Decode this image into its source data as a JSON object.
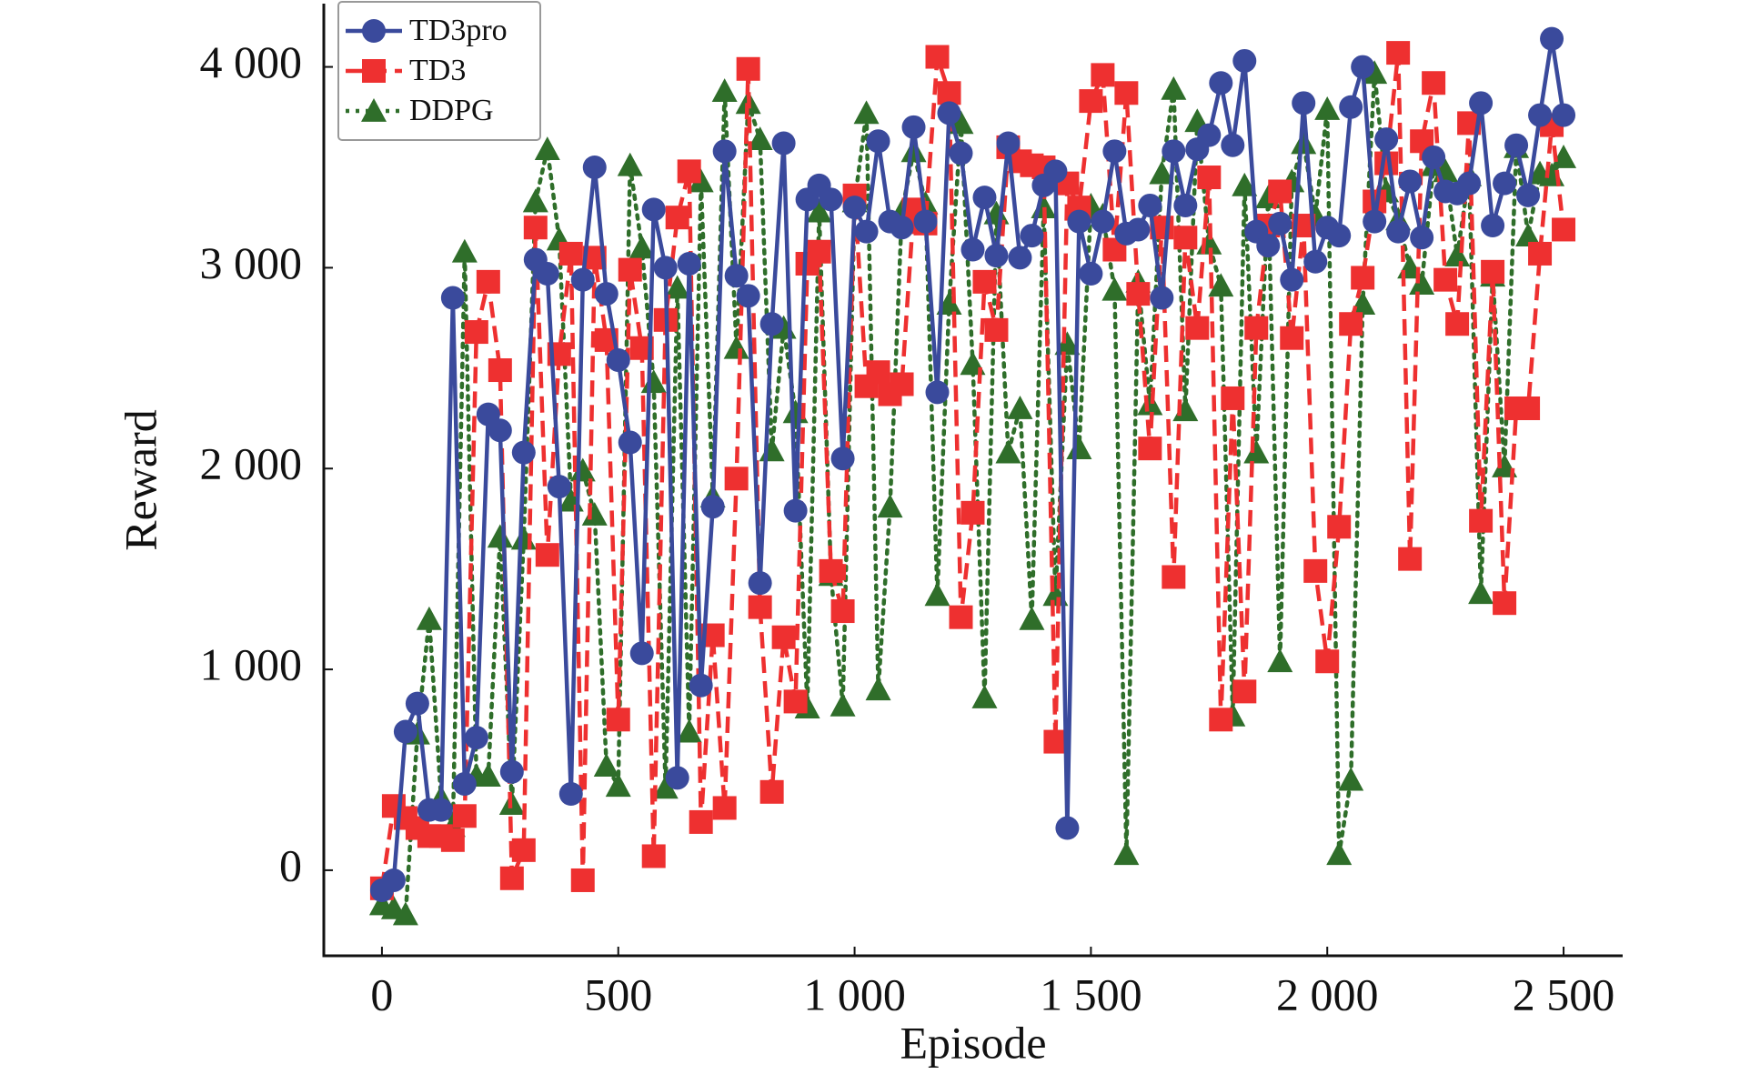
{
  "chart_data": {
    "type": "line",
    "x_label": "Episode",
    "y_label": "Reward",
    "x": [
      0,
      25,
      50,
      75,
      100,
      125,
      150,
      175,
      200,
      225,
      250,
      275,
      300,
      325,
      350,
      375,
      400,
      425,
      450,
      475,
      500,
      525,
      550,
      575,
      600,
      625,
      650,
      675,
      700,
      725,
      750,
      775,
      800,
      825,
      850,
      875,
      900,
      925,
      950,
      975,
      1000,
      1025,
      1050,
      1075,
      1100,
      1125,
      1150,
      1175,
      1200,
      1225,
      1250,
      1275,
      1300,
      1325,
      1350,
      1375,
      1400,
      1425,
      1450,
      1475,
      1500,
      1525,
      1550,
      1575,
      1600,
      1625,
      1650,
      1675,
      1700,
      1725,
      1750,
      1775,
      1800,
      1825,
      1850,
      1875,
      1900,
      1925,
      1950,
      1975,
      2000,
      2025,
      2050,
      2075,
      2100,
      2125,
      2150,
      2175,
      2200,
      2225,
      2250,
      2275,
      2300,
      2325,
      2350,
      2375,
      2400,
      2425,
      2450,
      2475,
      2500
    ],
    "series": [
      {
        "name": "TD3pro",
        "color": "#3a4a9c",
        "line": "solid",
        "marker": "circle",
        "values": [
          -100,
          -50,
          690,
          830,
          300,
          300,
          2850,
          430,
          660,
          2270,
          2190,
          490,
          2080,
          3040,
          2970,
          1910,
          380,
          2940,
          3500,
          2870,
          2540,
          2130,
          1080,
          3290,
          3000,
          460,
          3020,
          920,
          1810,
          3580,
          2960,
          2860,
          1430,
          2720,
          3620,
          1790,
          3340,
          3410,
          3340,
          2050,
          3300,
          3180,
          3630,
          3230,
          3200,
          3700,
          3230,
          2380,
          3770,
          3570,
          3090,
          3350,
          3060,
          3620,
          3050,
          3160,
          3410,
          3480,
          210,
          3230,
          2970,
          3230,
          3580,
          3170,
          3190,
          3310,
          2850,
          3580,
          3310,
          3590,
          3660,
          3920,
          3610,
          4030,
          3180,
          3110,
          3220,
          2940,
          3820,
          3030,
          3200,
          3160,
          3800,
          4000,
          3230,
          3640,
          3180,
          3430,
          3150,
          3550,
          3380,
          3370,
          3420,
          3820,
          3210,
          3420,
          3610,
          3360,
          3760,
          4140,
          3760
        ]
      },
      {
        "name": "TD3",
        "color": "#ee3030",
        "line": "dashed",
        "marker": "square",
        "values": [
          -90,
          320,
          260,
          210,
          170,
          170,
          150,
          270,
          2680,
          2930,
          2490,
          -40,
          100,
          3200,
          1570,
          2570,
          3070,
          -50,
          3050,
          2640,
          750,
          2990,
          2600,
          70,
          2740,
          3250,
          3480,
          240,
          1170,
          310,
          1950,
          3990,
          1310,
          390,
          1160,
          840,
          3020,
          3080,
          1490,
          1290,
          3360,
          2410,
          2480,
          2370,
          2420,
          3290,
          3220,
          4050,
          3870,
          1260,
          1780,
          2930,
          2690,
          3600,
          3530,
          3510,
          3500,
          640,
          3420,
          3300,
          3830,
          3960,
          3090,
          3870,
          2870,
          2100,
          3200,
          1460,
          3150,
          2700,
          3450,
          750,
          2350,
          890,
          2700,
          3210,
          3380,
          2650,
          3210,
          1490,
          1040,
          1710,
          2720,
          2950,
          3330,
          3520,
          4070,
          1550,
          3630,
          3920,
          2940,
          2720,
          3720,
          1740,
          2980,
          1330,
          2300,
          2300,
          3070,
          3710,
          3190
        ]
      },
      {
        "name": "DDPG",
        "color": "#2f6e2a",
        "line": "dotted",
        "marker": "triangle",
        "values": [
          -170,
          -190,
          -220,
          680,
          1250,
          360,
          220,
          3080,
          470,
          470,
          1660,
          330,
          1650,
          3330,
          3590,
          3140,
          1840,
          1990,
          1770,
          520,
          420,
          3510,
          3100,
          2430,
          410,
          2900,
          690,
          3430,
          1860,
          3880,
          2600,
          3820,
          3640,
          2090,
          2700,
          2280,
          810,
          3280,
          1470,
          820,
          3330,
          3770,
          900,
          1810,
          3280,
          3580,
          3320,
          1370,
          2820,
          3720,
          2520,
          860,
          3270,
          2080,
          2300,
          1250,
          3300,
          1370,
          2620,
          2100,
          3310,
          3260,
          2890,
          80,
          2930,
          2320,
          3470,
          3890,
          2290,
          3730,
          3120,
          2910,
          770,
          3410,
          2080,
          3350,
          1040,
          3430,
          3620,
          3260,
          3790,
          80,
          450,
          2820,
          3970,
          3380,
          3240,
          3000,
          2920,
          3510,
          3480,
          3060,
          3460,
          1380,
          2960,
          2010,
          3600,
          3160,
          3470,
          3460,
          3550
        ]
      }
    ],
    "xlim": [
      -123,
      2625
    ],
    "ylim": [
      -426,
      4315
    ],
    "xticks": [
      0,
      500,
      {
        "value": 1000,
        "label": "1 000"
      },
      {
        "value": 1500,
        "label": "1 500"
      },
      {
        "value": 2000,
        "label": "2 000"
      },
      {
        "value": 2500,
        "label": "2 500"
      }
    ],
    "yticks": [
      0,
      {
        "value": 1000,
        "label": "1 000"
      },
      {
        "value": 2000,
        "label": "2 000"
      },
      {
        "value": 3000,
        "label": "3 000"
      },
      {
        "value": 4000,
        "label": "4 000"
      }
    ],
    "legend": "upper left",
    "grid": false
  }
}
